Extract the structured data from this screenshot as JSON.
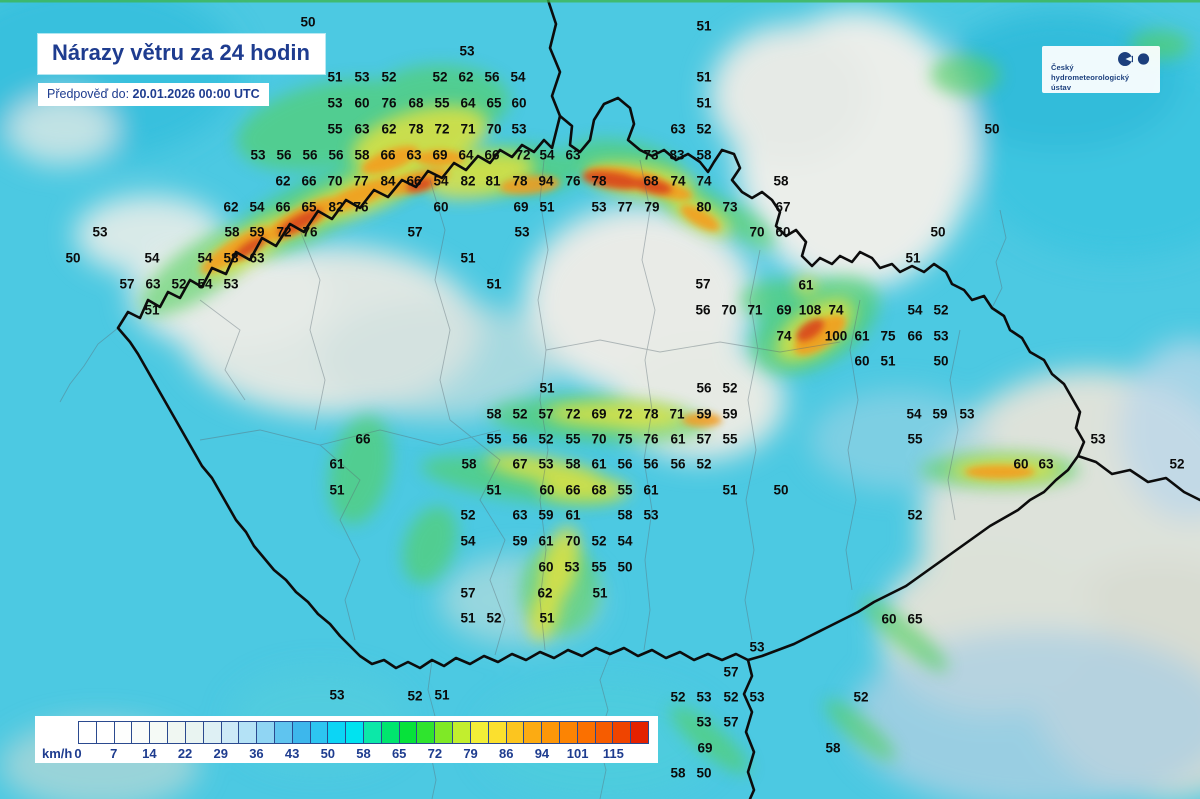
{
  "header": {
    "title": "Nárazy větru za 24 hodin",
    "forecast_label": "Předpověď do:",
    "forecast_value": "20.01.2026 00:00 UTC"
  },
  "logo": {
    "name_lines": [
      "Český",
      "hydrometeorologický",
      "ústav"
    ],
    "color": "#1c3f7d"
  },
  "legend": {
    "unit": "km/h",
    "ticks": [
      "0",
      "7",
      "14",
      "22",
      "29",
      "36",
      "43",
      "50",
      "58",
      "65",
      "72",
      "79",
      "86",
      "94",
      "101",
      "115"
    ],
    "cell_colors": [
      "#ffffff",
      "#ffffff",
      "#fdfefd",
      "#fafcfa",
      "#f5faf6",
      "#f0f7f2",
      "#e9f4f1",
      "#def0f4",
      "#cdeaf7",
      "#b4e2f6",
      "#90d5f3",
      "#5fc4ef",
      "#3db7ec",
      "#2dc5f1",
      "#0cd5f5",
      "#00e3f0",
      "#0ce8a8",
      "#00e56e",
      "#06e23a",
      "#2fe42e",
      "#7fe926",
      "#c2ee2e",
      "#f2ee38",
      "#fbe02e",
      "#fcc51f",
      "#fcab12",
      "#fc9709",
      "#fc8403",
      "#fb7000",
      "#f65c00",
      "#ef4400",
      "#e42100"
    ]
  },
  "map": {
    "values": [
      [
        50,
        308,
        22
      ],
      [
        53,
        467,
        51
      ],
      [
        51,
        704,
        26
      ],
      [
        51,
        335,
        77
      ],
      [
        53,
        362,
        77
      ],
      [
        52,
        389,
        77
      ],
      [
        52,
        440,
        77
      ],
      [
        62,
        466,
        77
      ],
      [
        56,
        492,
        77
      ],
      [
        54,
        518,
        77
      ],
      [
        51,
        704,
        77
      ],
      [
        53,
        335,
        103
      ],
      [
        60,
        362,
        103
      ],
      [
        76,
        389,
        103
      ],
      [
        68,
        416,
        103
      ],
      [
        55,
        442,
        103
      ],
      [
        64,
        468,
        103
      ],
      [
        65,
        494,
        103
      ],
      [
        60,
        519,
        103
      ],
      [
        51,
        704,
        103
      ],
      [
        55,
        335,
        129
      ],
      [
        63,
        362,
        129
      ],
      [
        62,
        389,
        129
      ],
      [
        78,
        416,
        129
      ],
      [
        72,
        442,
        129
      ],
      [
        71,
        468,
        129
      ],
      [
        70,
        494,
        129
      ],
      [
        53,
        519,
        129
      ],
      [
        63,
        678,
        129
      ],
      [
        52,
        704,
        129
      ],
      [
        50,
        992,
        129
      ],
      [
        53,
        258,
        155
      ],
      [
        56,
        284,
        155
      ],
      [
        56,
        310,
        155
      ],
      [
        56,
        336,
        155
      ],
      [
        58,
        362,
        155
      ],
      [
        66,
        388,
        155
      ],
      [
        63,
        414,
        155
      ],
      [
        69,
        440,
        155
      ],
      [
        64,
        466,
        155
      ],
      [
        66,
        492,
        155
      ],
      [
        72,
        523,
        155
      ],
      [
        54,
        547,
        155
      ],
      [
        63,
        573,
        155
      ],
      [
        73,
        651,
        155
      ],
      [
        83,
        677,
        155
      ],
      [
        58,
        704,
        155
      ],
      [
        62,
        283,
        181
      ],
      [
        66,
        309,
        181
      ],
      [
        70,
        335,
        181
      ],
      [
        77,
        361,
        181
      ],
      [
        84,
        388,
        181
      ],
      [
        66,
        414,
        181
      ],
      [
        54,
        441,
        181
      ],
      [
        82,
        468,
        181
      ],
      [
        81,
        493,
        181
      ],
      [
        78,
        520,
        181
      ],
      [
        94,
        546,
        181
      ],
      [
        76,
        573,
        181
      ],
      [
        78,
        599,
        181
      ],
      [
        68,
        651,
        181
      ],
      [
        74,
        678,
        181
      ],
      [
        74,
        704,
        181
      ],
      [
        58,
        781,
        181
      ],
      [
        62,
        231,
        207
      ],
      [
        54,
        257,
        207
      ],
      [
        66,
        283,
        207
      ],
      [
        65,
        309,
        207
      ],
      [
        82,
        336,
        207
      ],
      [
        76,
        361,
        207
      ],
      [
        60,
        441,
        207
      ],
      [
        69,
        521,
        207
      ],
      [
        51,
        547,
        207
      ],
      [
        53,
        599,
        207
      ],
      [
        77,
        625,
        207
      ],
      [
        79,
        652,
        207
      ],
      [
        80,
        704,
        207
      ],
      [
        73,
        730,
        207
      ],
      [
        67,
        783,
        207
      ],
      [
        53,
        100,
        232
      ],
      [
        58,
        232,
        232
      ],
      [
        59,
        257,
        232
      ],
      [
        72,
        284,
        232
      ],
      [
        76,
        310,
        232
      ],
      [
        57,
        415,
        232
      ],
      [
        53,
        522,
        232
      ],
      [
        70,
        757,
        232
      ],
      [
        60,
        783,
        232
      ],
      [
        50,
        938,
        232
      ],
      [
        50,
        73,
        258
      ],
      [
        54,
        152,
        258
      ],
      [
        54,
        205,
        258
      ],
      [
        58,
        231,
        258
      ],
      [
        63,
        257,
        258
      ],
      [
        51,
        468,
        258
      ],
      [
        51,
        913,
        258
      ],
      [
        57,
        127,
        284
      ],
      [
        63,
        153,
        284
      ],
      [
        52,
        179,
        284
      ],
      [
        54,
        205,
        284
      ],
      [
        53,
        231,
        284
      ],
      [
        51,
        494,
        284
      ],
      [
        57,
        703,
        284
      ],
      [
        61,
        806,
        285
      ],
      [
        51,
        152,
        310
      ],
      [
        56,
        703,
        310
      ],
      [
        70,
        729,
        310
      ],
      [
        71,
        755,
        310
      ],
      [
        69,
        784,
        310
      ],
      [
        108,
        810,
        310
      ],
      [
        74,
        836,
        310
      ],
      [
        54,
        915,
        310
      ],
      [
        52,
        941,
        310
      ],
      [
        74,
        784,
        336
      ],
      [
        100,
        836,
        336
      ],
      [
        61,
        862,
        336
      ],
      [
        75,
        888,
        336
      ],
      [
        66,
        915,
        336
      ],
      [
        53,
        941,
        336
      ],
      [
        60,
        862,
        361
      ],
      [
        51,
        888,
        361
      ],
      [
        50,
        941,
        361
      ],
      [
        51,
        547,
        388
      ],
      [
        56,
        704,
        388
      ],
      [
        52,
        730,
        388
      ],
      [
        58,
        494,
        414
      ],
      [
        52,
        520,
        414
      ],
      [
        57,
        546,
        414
      ],
      [
        72,
        573,
        414
      ],
      [
        69,
        599,
        414
      ],
      [
        72,
        625,
        414
      ],
      [
        78,
        651,
        414
      ],
      [
        71,
        677,
        414
      ],
      [
        59,
        704,
        414
      ],
      [
        59,
        730,
        414
      ],
      [
        54,
        914,
        414
      ],
      [
        59,
        940,
        414
      ],
      [
        53,
        967,
        414
      ],
      [
        66,
        363,
        439
      ],
      [
        55,
        494,
        439
      ],
      [
        56,
        520,
        439
      ],
      [
        52,
        546,
        439
      ],
      [
        55,
        573,
        439
      ],
      [
        70,
        599,
        439
      ],
      [
        75,
        625,
        439
      ],
      [
        76,
        651,
        439
      ],
      [
        61,
        678,
        439
      ],
      [
        57,
        704,
        439
      ],
      [
        55,
        730,
        439
      ],
      [
        55,
        915,
        439
      ],
      [
        53,
        1098,
        439
      ],
      [
        61,
        337,
        464
      ],
      [
        58,
        469,
        464
      ],
      [
        67,
        520,
        464
      ],
      [
        53,
        546,
        464
      ],
      [
        58,
        573,
        464
      ],
      [
        61,
        599,
        464
      ],
      [
        56,
        625,
        464
      ],
      [
        56,
        651,
        464
      ],
      [
        56,
        678,
        464
      ],
      [
        52,
        704,
        464
      ],
      [
        60,
        1021,
        464
      ],
      [
        63,
        1046,
        464
      ],
      [
        52,
        1177,
        464
      ],
      [
        51,
        337,
        490
      ],
      [
        51,
        494,
        490
      ],
      [
        60,
        547,
        490
      ],
      [
        66,
        573,
        490
      ],
      [
        68,
        599,
        490
      ],
      [
        55,
        625,
        490
      ],
      [
        61,
        651,
        490
      ],
      [
        51,
        730,
        490
      ],
      [
        50,
        781,
        490
      ],
      [
        52,
        468,
        515
      ],
      [
        63,
        520,
        515
      ],
      [
        59,
        546,
        515
      ],
      [
        61,
        573,
        515
      ],
      [
        58,
        625,
        515
      ],
      [
        53,
        651,
        515
      ],
      [
        52,
        915,
        515
      ],
      [
        54,
        468,
        541
      ],
      [
        59,
        520,
        541
      ],
      [
        61,
        546,
        541
      ],
      [
        70,
        573,
        541
      ],
      [
        52,
        599,
        541
      ],
      [
        54,
        625,
        541
      ],
      [
        60,
        546,
        567
      ],
      [
        53,
        572,
        567
      ],
      [
        55,
        599,
        567
      ],
      [
        50,
        625,
        567
      ],
      [
        57,
        468,
        593
      ],
      [
        62,
        545,
        593
      ],
      [
        51,
        600,
        593
      ],
      [
        51,
        468,
        618
      ],
      [
        52,
        494,
        618
      ],
      [
        51,
        547,
        618
      ],
      [
        60,
        889,
        619
      ],
      [
        65,
        915,
        619
      ],
      [
        53,
        757,
        647
      ],
      [
        57,
        731,
        672
      ],
      [
        53,
        337,
        695
      ],
      [
        52,
        415,
        696
      ],
      [
        51,
        442,
        695
      ],
      [
        52,
        678,
        697
      ],
      [
        53,
        704,
        697
      ],
      [
        52,
        731,
        697
      ],
      [
        53,
        757,
        697
      ],
      [
        52,
        861,
        697
      ],
      [
        53,
        704,
        722
      ],
      [
        57,
        731,
        722
      ],
      [
        69,
        705,
        748
      ],
      [
        58,
        833,
        748
      ],
      [
        58,
        678,
        773
      ],
      [
        50,
        704,
        773
      ]
    ]
  }
}
